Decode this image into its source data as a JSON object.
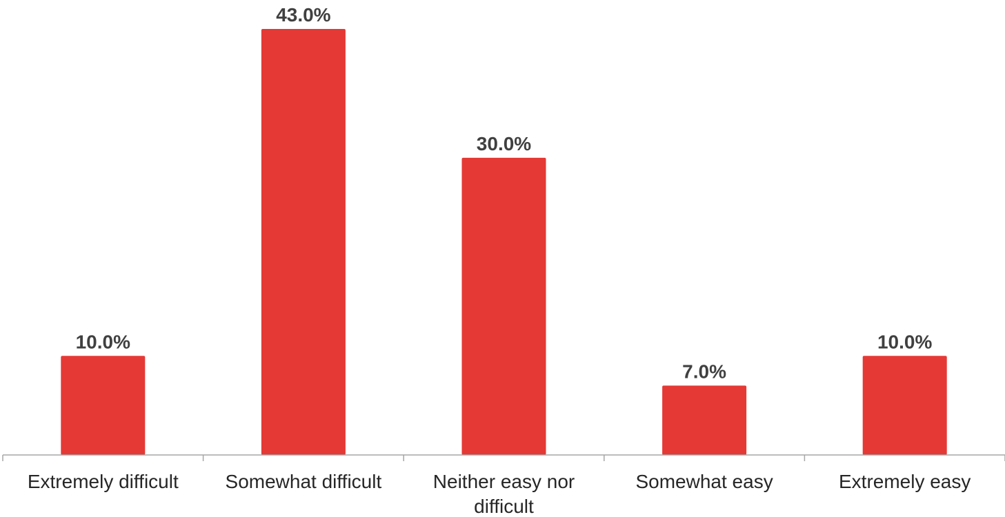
{
  "chart_data": {
    "type": "bar",
    "categories": [
      "Extremely difficult",
      "Somewhat difficult",
      "Neither easy nor difficult",
      "Somewhat easy",
      "Extremely easy"
    ],
    "category_label_lines": [
      [
        "Extremely difficult"
      ],
      [
        "Somewhat difficult"
      ],
      [
        "Neither easy nor",
        "difficult"
      ],
      [
        "Somewhat easy"
      ],
      [
        "Extremely easy"
      ]
    ],
    "values": [
      10.0,
      43.0,
      30.0,
      7.0,
      10.0
    ],
    "data_labels": [
      "10.0%",
      "43.0%",
      "30.0%",
      "7.0%",
      "10.0%"
    ],
    "bar_color": "#e53935",
    "ylim": [
      0,
      45
    ],
    "grid": false,
    "legend": "none"
  }
}
